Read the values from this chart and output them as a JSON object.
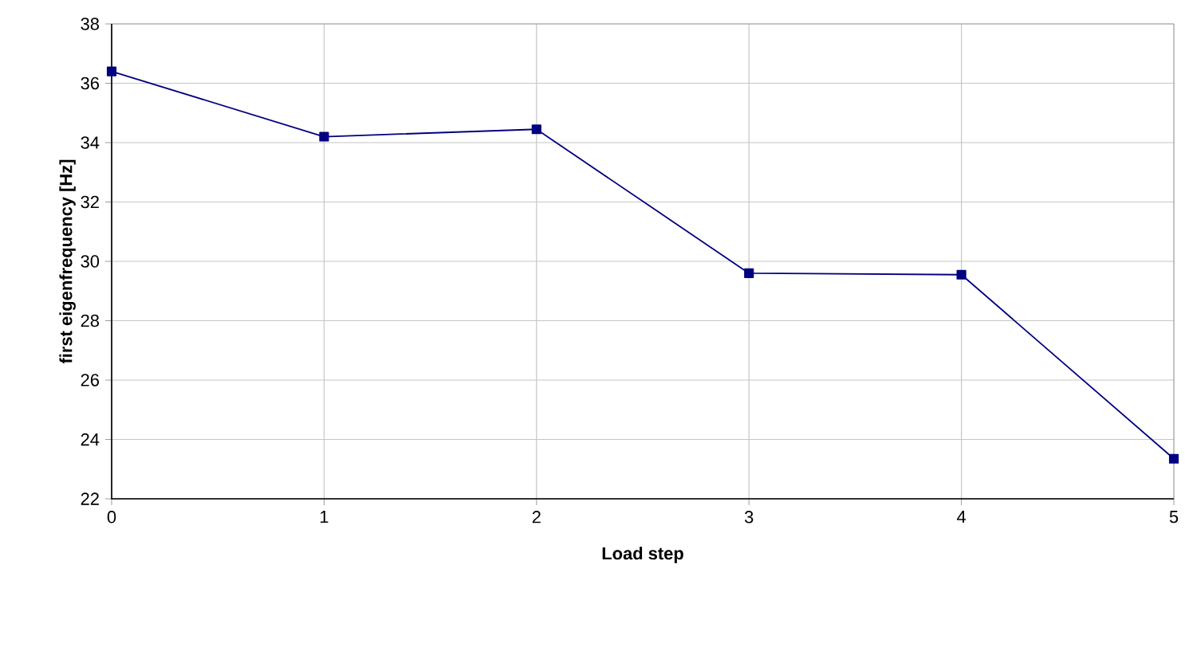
{
  "chart_data": {
    "type": "line",
    "xlabel": "Load step",
    "ylabel": "first eigenfrequency [Hz]",
    "x": [
      0,
      1,
      2,
      3,
      4,
      5
    ],
    "series": [
      {
        "color": "#000080",
        "values": [
          36.4,
          34.2,
          34.45,
          29.6,
          29.55,
          23.35
        ]
      }
    ],
    "xlim": [
      0,
      5
    ],
    "xticks": [
      0,
      1,
      2,
      3,
      4,
      5
    ],
    "ylim": [
      22,
      38
    ],
    "yticks": [
      22,
      24,
      26,
      28,
      30,
      32,
      34,
      36,
      38
    ],
    "grid": true,
    "marker": "square",
    "line_style": "solid"
  }
}
